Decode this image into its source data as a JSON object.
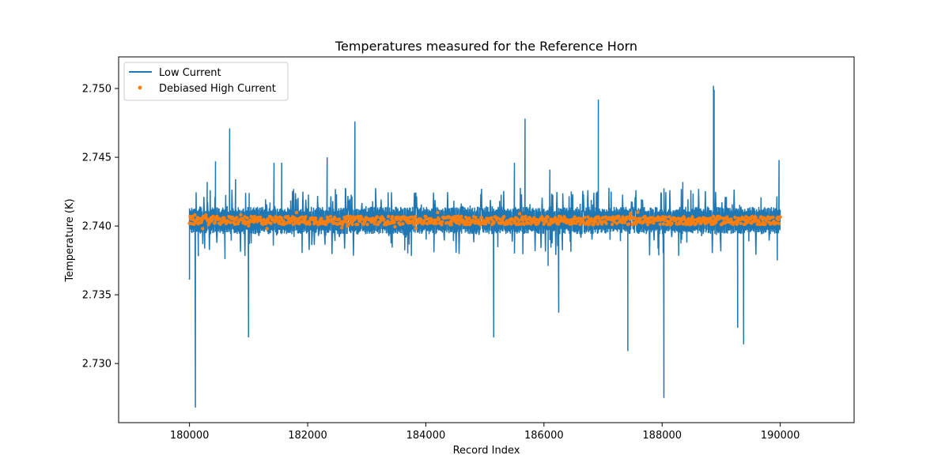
{
  "chart_data": {
    "type": "line",
    "title": "Temperatures measured for the Reference Horn",
    "xlabel": "Record Index",
    "ylabel": "Temperature (K)",
    "xlim": [
      178800,
      191250
    ],
    "ylim": [
      2.7257,
      2.7523
    ],
    "x_ticks": [
      180000,
      182000,
      184000,
      186000,
      188000,
      190000
    ],
    "x_tick_labels": [
      "180000",
      "182000",
      "184000",
      "186000",
      "188000",
      "190000"
    ],
    "y_ticks": [
      2.73,
      2.735,
      2.74,
      2.745,
      2.75
    ],
    "y_tick_labels": [
      "2.730",
      "2.735",
      "2.740",
      "2.745",
      "2.750"
    ],
    "legend_position": "top-left",
    "colors": {
      "low": "#1f77b4",
      "high": "#ff7f0e"
    },
    "series": [
      {
        "name": "Low Current",
        "kind": "line",
        "color": "#1f77b4",
        "x_range": [
          180000,
          190000
        ],
        "band_low": 2.7394,
        "band_high": 2.7414,
        "spikes": [
          {
            "x": 180000,
            "y": 2.7361
          },
          {
            "x": 180100,
            "y": 2.7268
          },
          {
            "x": 180150,
            "y": 2.7378
          },
          {
            "x": 180300,
            "y": 2.7432
          },
          {
            "x": 180440,
            "y": 2.7447
          },
          {
            "x": 180600,
            "y": 2.7376
          },
          {
            "x": 180680,
            "y": 2.7471
          },
          {
            "x": 180780,
            "y": 2.7434
          },
          {
            "x": 181000,
            "y": 2.7319
          },
          {
            "x": 181010,
            "y": 2.7424
          },
          {
            "x": 181430,
            "y": 2.7446
          },
          {
            "x": 181560,
            "y": 2.7446
          },
          {
            "x": 182330,
            "y": 2.745
          },
          {
            "x": 182800,
            "y": 2.7476
          },
          {
            "x": 185150,
            "y": 2.7319
          },
          {
            "x": 185500,
            "y": 2.7446
          },
          {
            "x": 185680,
            "y": 2.7478
          },
          {
            "x": 186100,
            "y": 2.7441
          },
          {
            "x": 186070,
            "y": 2.7371
          },
          {
            "x": 186250,
            "y": 2.7337
          },
          {
            "x": 186920,
            "y": 2.7492
          },
          {
            "x": 187420,
            "y": 2.7309
          },
          {
            "x": 188030,
            "y": 2.7275
          },
          {
            "x": 188350,
            "y": 2.7432
          },
          {
            "x": 188870,
            "y": 2.7502
          },
          {
            "x": 188880,
            "y": 2.7499
          },
          {
            "x": 189280,
            "y": 2.7326
          },
          {
            "x": 189380,
            "y": 2.7314
          },
          {
            "x": 189950,
            "y": 2.7375
          },
          {
            "x": 189980,
            "y": 2.7448
          }
        ]
      },
      {
        "name": "Debiased High Current",
        "kind": "scatter",
        "color": "#ff7f0e",
        "x_range": [
          180000,
          190000
        ],
        "center": 2.7404,
        "spread": 0.0003
      }
    ]
  }
}
